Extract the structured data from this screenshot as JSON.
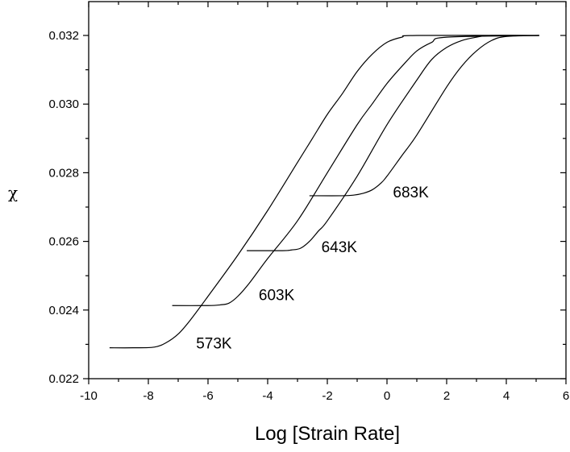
{
  "chart_data": {
    "type": "line",
    "title": "",
    "xlabel": "Log [Strain Rate]",
    "ylabel": "χ",
    "xlim": [
      -10,
      6
    ],
    "ylim": [
      0.022,
      0.033
    ],
    "x_ticks": [
      -10,
      -8,
      -6,
      -4,
      -2,
      0,
      2,
      4,
      6
    ],
    "x_tick_labels": [
      "-10",
      "-8",
      "-6",
      "-4",
      "-2",
      "0",
      "2",
      "4",
      "6"
    ],
    "y_ticks": [
      0.022,
      0.024,
      0.026,
      0.028,
      0.03,
      0.032
    ],
    "y_tick_labels": [
      "0.022",
      "0.024",
      "0.026",
      "0.028",
      "0.030",
      "0.032"
    ],
    "grid": false,
    "legend": "none",
    "series": [
      {
        "name": "573K",
        "label": "573K",
        "x": [
          -9.3,
          -8.5,
          -7.8,
          -7.4,
          -7.0,
          -6.6,
          -6.0,
          -5.0,
          -4.0,
          -3.0,
          -2.5,
          -2.0,
          -1.5,
          -1.0,
          -0.5,
          0.0,
          0.5,
          1.0,
          5.1
        ],
        "y": [
          0.0229,
          0.0229,
          0.02292,
          0.02305,
          0.0233,
          0.0237,
          0.0244,
          0.0256,
          0.0269,
          0.0283,
          0.029,
          0.0297,
          0.0303,
          0.03095,
          0.03145,
          0.0318,
          0.03195,
          0.032,
          0.032
        ]
      },
      {
        "name": "603K",
        "label": "603K",
        "x": [
          -7.2,
          -6.0,
          -5.6,
          -5.3,
          -5.0,
          -4.6,
          -4.0,
          -3.0,
          -2.0,
          -1.0,
          -0.5,
          0.0,
          0.5,
          1.0,
          1.5,
          2.0,
          5.1
        ],
        "y": [
          0.02413,
          0.02413,
          0.02415,
          0.0242,
          0.0244,
          0.0248,
          0.0255,
          0.0266,
          0.028,
          0.0294,
          0.03,
          0.0306,
          0.0311,
          0.03155,
          0.0318,
          0.03195,
          0.032
        ]
      },
      {
        "name": "643K",
        "label": "643K",
        "x": [
          -4.7,
          -3.5,
          -3.2,
          -2.9,
          -2.6,
          -2.3,
          -2.0,
          -1.0,
          0.0,
          1.0,
          1.5,
          2.0,
          2.5,
          3.0,
          3.5,
          5.1
        ],
        "y": [
          0.02573,
          0.02573,
          0.02575,
          0.0258,
          0.026,
          0.0263,
          0.0266,
          0.0279,
          0.0294,
          0.0307,
          0.0313,
          0.03165,
          0.03185,
          0.03195,
          0.032,
          0.032
        ]
      },
      {
        "name": "683K",
        "label": "683K",
        "x": [
          -2.6,
          -1.5,
          -1.1,
          -0.8,
          -0.5,
          -0.2,
          0.0,
          0.5,
          1.0,
          2.0,
          2.5,
          3.0,
          3.5,
          4.0,
          5.1
        ],
        "y": [
          0.02733,
          0.02733,
          0.02735,
          0.0274,
          0.0275,
          0.0277,
          0.0279,
          0.0285,
          0.0291,
          0.0305,
          0.0311,
          0.03155,
          0.03185,
          0.03197,
          0.032
        ]
      }
    ],
    "annotations": [
      {
        "text": "573K",
        "x": -6.4,
        "y": 0.02305
      },
      {
        "text": "603K",
        "x": -4.3,
        "y": 0.02445
      },
      {
        "text": "643K",
        "x": -2.2,
        "y": 0.02585
      },
      {
        "text": "683K",
        "x": 0.2,
        "y": 0.02745
      }
    ]
  }
}
